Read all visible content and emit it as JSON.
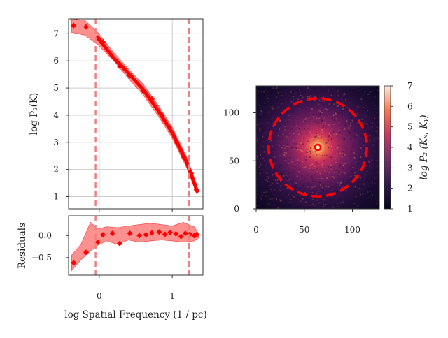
{
  "chart_data": [
    {
      "type": "line",
      "panel": "power spectrum",
      "xlabel": "log Spatial Frequency (1 / pc)",
      "ylabel": "log P₂(K)",
      "xlim": [
        -0.42,
        1.42
      ],
      "ylim": [
        0.55,
        7.55
      ],
      "xticks": [
        0,
        1
      ],
      "yticks": [
        1,
        2,
        3,
        4,
        5,
        6,
        7
      ],
      "grid": true,
      "markers": {
        "x": [
          -0.35,
          -0.18,
          -0.02,
          0.05,
          0.28,
          0.42,
          0.6,
          0.72,
          0.86,
          0.96,
          1.06,
          1.16,
          1.26,
          1.33
        ],
        "y": [
          7.3,
          7.25,
          6.85,
          6.7,
          5.8,
          5.45,
          4.9,
          4.6,
          4.0,
          3.55,
          3.0,
          2.45,
          1.85,
          1.25
        ]
      },
      "fit_line": {
        "x": [
          -0.02,
          0.2,
          0.4,
          0.6,
          0.8,
          1.0,
          1.2,
          1.34
        ],
        "y": [
          6.85,
          6.1,
          5.55,
          4.95,
          4.2,
          3.35,
          2.25,
          1.2
        ]
      },
      "band": {
        "x": [
          -0.38,
          -0.2,
          -0.02,
          0.2,
          0.4,
          0.6,
          0.8,
          1.0,
          1.2,
          1.34
        ],
        "lower": [
          7.05,
          6.95,
          6.6,
          6.0,
          5.35,
          4.75,
          4.0,
          3.15,
          2.05,
          1.05
        ],
        "upper": [
          7.55,
          7.5,
          7.05,
          6.3,
          5.7,
          5.15,
          4.4,
          3.55,
          2.45,
          1.4
        ]
      },
      "vlines": [
        -0.05,
        1.23
      ],
      "colors": {
        "marker": "#ff0000",
        "band": "#ff6b6b",
        "vline": "#f08080"
      }
    },
    {
      "type": "scatter",
      "panel": "residuals",
      "xlabel": "log Spatial Frequency (1 / pc)",
      "ylabel": "Residuals",
      "xlim": [
        -0.42,
        1.42
      ],
      "ylim": [
        -0.9,
        0.45
      ],
      "xticks": [
        0,
        1
      ],
      "xtick_labels": [
        "0",
        "1"
      ],
      "yticks": [
        0.0,
        -0.5
      ],
      "ytick_labels": [
        "0.0",
        "−0.5"
      ],
      "grid": false,
      "x": [
        -0.35,
        -0.18,
        -0.02,
        0.05,
        0.18,
        0.28,
        0.42,
        0.55,
        0.64,
        0.72,
        0.82,
        0.9,
        0.97,
        1.05,
        1.12,
        1.18,
        1.24,
        1.3,
        1.33
      ],
      "y": [
        -0.62,
        -0.38,
        -0.15,
        0.02,
        0.05,
        -0.18,
        0.05,
        0.0,
        0.02,
        0.06,
        0.08,
        0.03,
        0.07,
        0.04,
        -0.02,
        0.05,
        0.03,
        0.0,
        0.02
      ],
      "band": {
        "x": [
          -0.38,
          -0.25,
          -0.12,
          -0.02,
          0.1,
          0.25,
          0.4,
          0.55,
          0.7,
          0.85,
          1.0,
          1.15,
          1.3,
          1.36
        ],
        "lower": [
          -0.8,
          -0.55,
          -0.35,
          -0.22,
          -0.12,
          -0.2,
          -0.1,
          -0.15,
          -0.12,
          -0.1,
          -0.12,
          -0.15,
          -0.12,
          -0.05
        ],
        "upper": [
          -0.45,
          -0.2,
          0.3,
          0.15,
          0.2,
          0.18,
          0.22,
          0.25,
          0.28,
          0.25,
          0.22,
          0.3,
          0.2,
          0.05
        ]
      },
      "vlines": [
        -0.05,
        1.23
      ]
    },
    {
      "type": "heatmap",
      "panel": "2D power spectrum",
      "xlim": [
        0,
        128
      ],
      "ylim": [
        0,
        128
      ],
      "xticks": [
        0,
        50,
        100
      ],
      "yticks": [
        0,
        50,
        100
      ],
      "center": [
        64,
        64
      ],
      "circle_radius": 51,
      "inner_radius": 3,
      "colorbar": {
        "label": "log P₂ (Kₓ, Kᵧ)",
        "ticks": [
          1,
          2,
          3,
          4,
          5,
          6,
          7
        ],
        "range": [
          1,
          7
        ]
      },
      "colors": {
        "circle": "#ff0000"
      }
    }
  ]
}
